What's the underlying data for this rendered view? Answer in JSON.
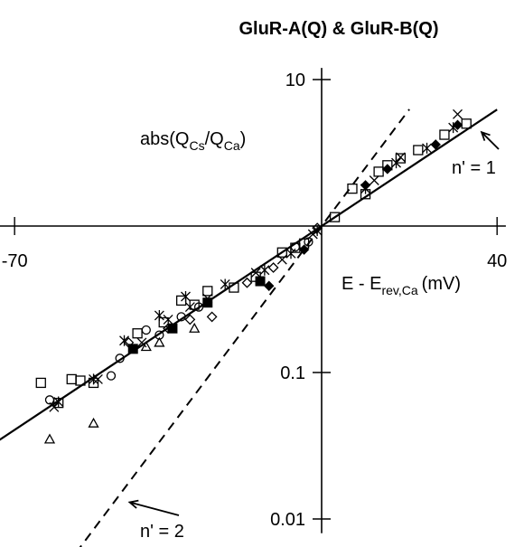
{
  "chart_data": {
    "type": "scatter",
    "title": "GluR-A(Q) & GluR-B(Q)",
    "xlabel": {
      "main": "E - E",
      "sub": "rev,Ca",
      "unit": "(mV)"
    },
    "ylabel": {
      "prefix": "abs(Q",
      "sub1": "Cs",
      "mid": "/Q",
      "sub2": "Ca",
      "suffix": ")"
    },
    "xlim": [
      -76,
      42
    ],
    "ylim": [
      0.008,
      12
    ],
    "y_scale": "log",
    "x_tick_labels": [
      {
        "value": -70,
        "label": "-70"
      },
      {
        "value": 40,
        "label": "40"
      }
    ],
    "y_tick_labels": [
      {
        "value": 10,
        "label": "10"
      },
      {
        "value": 0.1,
        "label": "0.1"
      },
      {
        "value": 0.01,
        "label": "0.01"
      }
    ],
    "lines": [
      {
        "style": "solid",
        "label": "n' = 1",
        "x_range": [
          -74,
          40
        ],
        "slope_per_decade_mV": 50.3
      },
      {
        "style": "dashed",
        "label": "n' = 2",
        "x_range": [
          -56,
          20
        ],
        "slope_per_decade_mV": 25.1
      }
    ],
    "annotations": [
      {
        "text": "n' = 1",
        "arrow_to": [
          34,
          4.9
        ]
      },
      {
        "text": "n' = 2",
        "arrow_to": [
          -45,
          0.015
        ]
      }
    ],
    "markers": [
      {
        "shape": "square",
        "points": [
          [
            -64,
            0.085
          ],
          [
            -60,
            0.062
          ],
          [
            -57,
            0.09
          ],
          [
            -55,
            0.088
          ],
          [
            -52,
            0.085
          ],
          [
            -42,
            0.185
          ],
          [
            -36,
            0.22
          ],
          [
            -32,
            0.31
          ],
          [
            -29,
            0.29
          ],
          [
            -26,
            0.36
          ],
          [
            -20,
            0.38
          ],
          [
            -15,
            0.45
          ],
          [
            -9,
            0.66
          ],
          [
            -6,
            0.71
          ],
          [
            -4,
            0.76
          ],
          [
            3,
            1.15
          ],
          [
            7,
            1.8
          ],
          [
            10,
            1.65
          ],
          [
            13,
            2.35
          ],
          [
            15,
            2.6
          ],
          [
            18,
            2.9
          ],
          [
            22,
            3.3
          ],
          [
            28,
            4.2
          ],
          [
            33,
            5.0
          ]
        ]
      },
      {
        "shape": "filled-square",
        "points": [
          [
            -43,
            0.145
          ],
          [
            -34,
            0.2
          ],
          [
            -26,
            0.3
          ],
          [
            -14,
            0.42
          ]
        ]
      },
      {
        "shape": "cross",
        "points": [
          [
            -61,
            0.058
          ],
          [
            -51,
            0.09
          ],
          [
            -41,
            0.16
          ],
          [
            -35,
            0.23
          ],
          [
            -30,
            0.28
          ],
          [
            -26,
            0.32
          ],
          [
            -15,
            0.48
          ],
          [
            -9,
            0.59
          ],
          [
            -2,
            0.88
          ],
          [
            12,
            2.05
          ],
          [
            18,
            2.95
          ],
          [
            31,
            5.8
          ]
        ]
      },
      {
        "shape": "asterisk",
        "points": [
          [
            -60,
            0.063
          ],
          [
            -52,
            0.09
          ],
          [
            -45,
            0.165
          ],
          [
            -37,
            0.245
          ],
          [
            -31,
            0.33
          ],
          [
            -22,
            0.4
          ],
          [
            -13,
            0.5
          ],
          [
            -7,
            0.65
          ],
          [
            -1,
            0.93
          ],
          [
            10,
            1.8
          ],
          [
            17,
            2.7
          ],
          [
            24,
            3.4
          ],
          [
            30,
            4.7
          ]
        ]
      },
      {
        "shape": "circle",
        "points": [
          [
            -62,
            0.065
          ],
          [
            -48,
            0.095
          ],
          [
            -46,
            0.125
          ],
          [
            -40,
            0.195
          ],
          [
            -37,
            0.18
          ],
          [
            -32,
            0.24
          ],
          [
            -28,
            0.28
          ],
          [
            -6,
            0.72
          ],
          [
            -3,
            0.78
          ]
        ]
      },
      {
        "shape": "diamond",
        "points": [
          [
            -44,
            0.16
          ],
          [
            -35,
            0.2
          ],
          [
            -30,
            0.23
          ],
          [
            -25,
            0.24
          ],
          [
            -17,
            0.41
          ],
          [
            -11,
            0.52
          ],
          [
            -1,
            0.97
          ]
        ]
      },
      {
        "shape": "filled-diamond",
        "points": [
          [
            -12,
            0.39
          ],
          [
            -4,
            0.69
          ],
          [
            10,
            1.9
          ],
          [
            15,
            2.45
          ],
          [
            26,
            3.6
          ],
          [
            31,
            4.9
          ]
        ]
      },
      {
        "shape": "triangle",
        "points": [
          [
            -62,
            0.035
          ],
          [
            -52,
            0.045
          ],
          [
            -40,
            0.15
          ],
          [
            -37,
            0.16
          ],
          [
            -29,
            0.2
          ]
        ]
      }
    ]
  }
}
